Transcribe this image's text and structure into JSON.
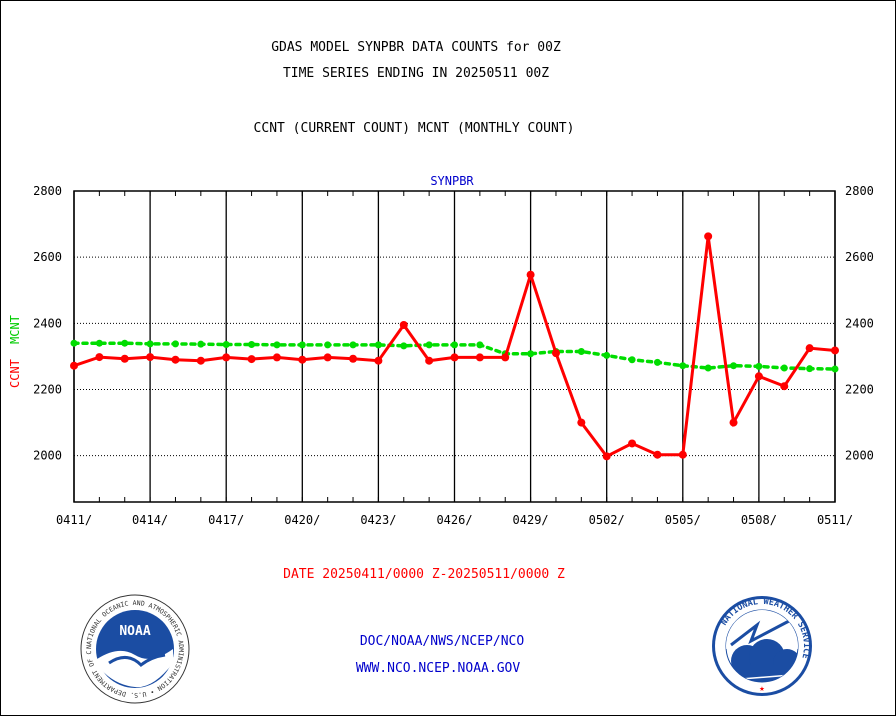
{
  "header": {
    "title_line1": "GDAS MODEL SYNPBR DATA COUNTS for 00Z",
    "title_line2": "TIME SERIES ENDING IN 20250511 00Z",
    "subtitle": "CCNT (CURRENT COUNT) MCNT (MONTHLY COUNT)"
  },
  "footer": {
    "date_range": "DATE 20250411/0000 Z-20250511/0000 Z",
    "org_path": "DOC/NOAA/NWS/NCEP/NCO",
    "website": "WWW.NCO.NCEP.NOAA.GOV",
    "noaa_logo_text": "NOAA",
    "noaa_ring_text": "NATIONAL OCEANIC AND ATMOSPHERIC ADMINISTRATION • U.S. DEPARTMENT OF COMMERCE •",
    "nws_ring_text": "NATIONAL WEATHER SERVICE"
  },
  "colors": {
    "ccnt": "#ff0000",
    "mcnt": "#00dd00",
    "title": "#000000",
    "dataset_label": "#0000cc",
    "footer_link": "#0000cc",
    "date_range": "#ff0000"
  },
  "chart_data": {
    "type": "line",
    "dataset_label": "SYNPBR",
    "ylabel_ccnt": "CCNT",
    "ylabel_mcnt": "MCNT",
    "ylim": [
      1860,
      2800
    ],
    "yticks": [
      2000,
      2200,
      2400,
      2600,
      2800
    ],
    "grid": true,
    "x_tick_labels": [
      "0411/",
      "0414/",
      "0417/",
      "0420/",
      "0423/",
      "0426/",
      "0429/",
      "0502/",
      "0505/",
      "0508/",
      "0511/"
    ],
    "x": [
      "0411",
      "0412",
      "0413",
      "0414",
      "0415",
      "0416",
      "0417",
      "0418",
      "0419",
      "0420",
      "0421",
      "0422",
      "0423",
      "0424",
      "0425",
      "0426",
      "0427",
      "0428",
      "0429",
      "0430",
      "0501",
      "0502",
      "0503",
      "0504",
      "0505",
      "0506",
      "0507",
      "0508",
      "0509",
      "0510",
      "0511"
    ],
    "series": [
      {
        "name": "CCNT",
        "style": "solid",
        "values": [
          2272,
          2298,
          2293,
          2298,
          2290,
          2287,
          2297,
          2292,
          2297,
          2290,
          2297,
          2293,
          2287,
          2395,
          2287,
          2297,
          2297,
          2297,
          2547,
          2310,
          2100,
          1998,
          2037,
          2003,
          2003,
          2663,
          2100,
          2240,
          2210,
          2325,
          2318
        ]
      },
      {
        "name": "MCNT",
        "style": "dotted",
        "values": [
          2340,
          2340,
          2340,
          2338,
          2338,
          2337,
          2336,
          2336,
          2335,
          2335,
          2335,
          2335,
          2335,
          2332,
          2335,
          2335,
          2335,
          2308,
          2308,
          2315,
          2315,
          2303,
          2290,
          2282,
          2272,
          2265,
          2272,
          2270,
          2265,
          2263,
          2262
        ]
      }
    ]
  }
}
